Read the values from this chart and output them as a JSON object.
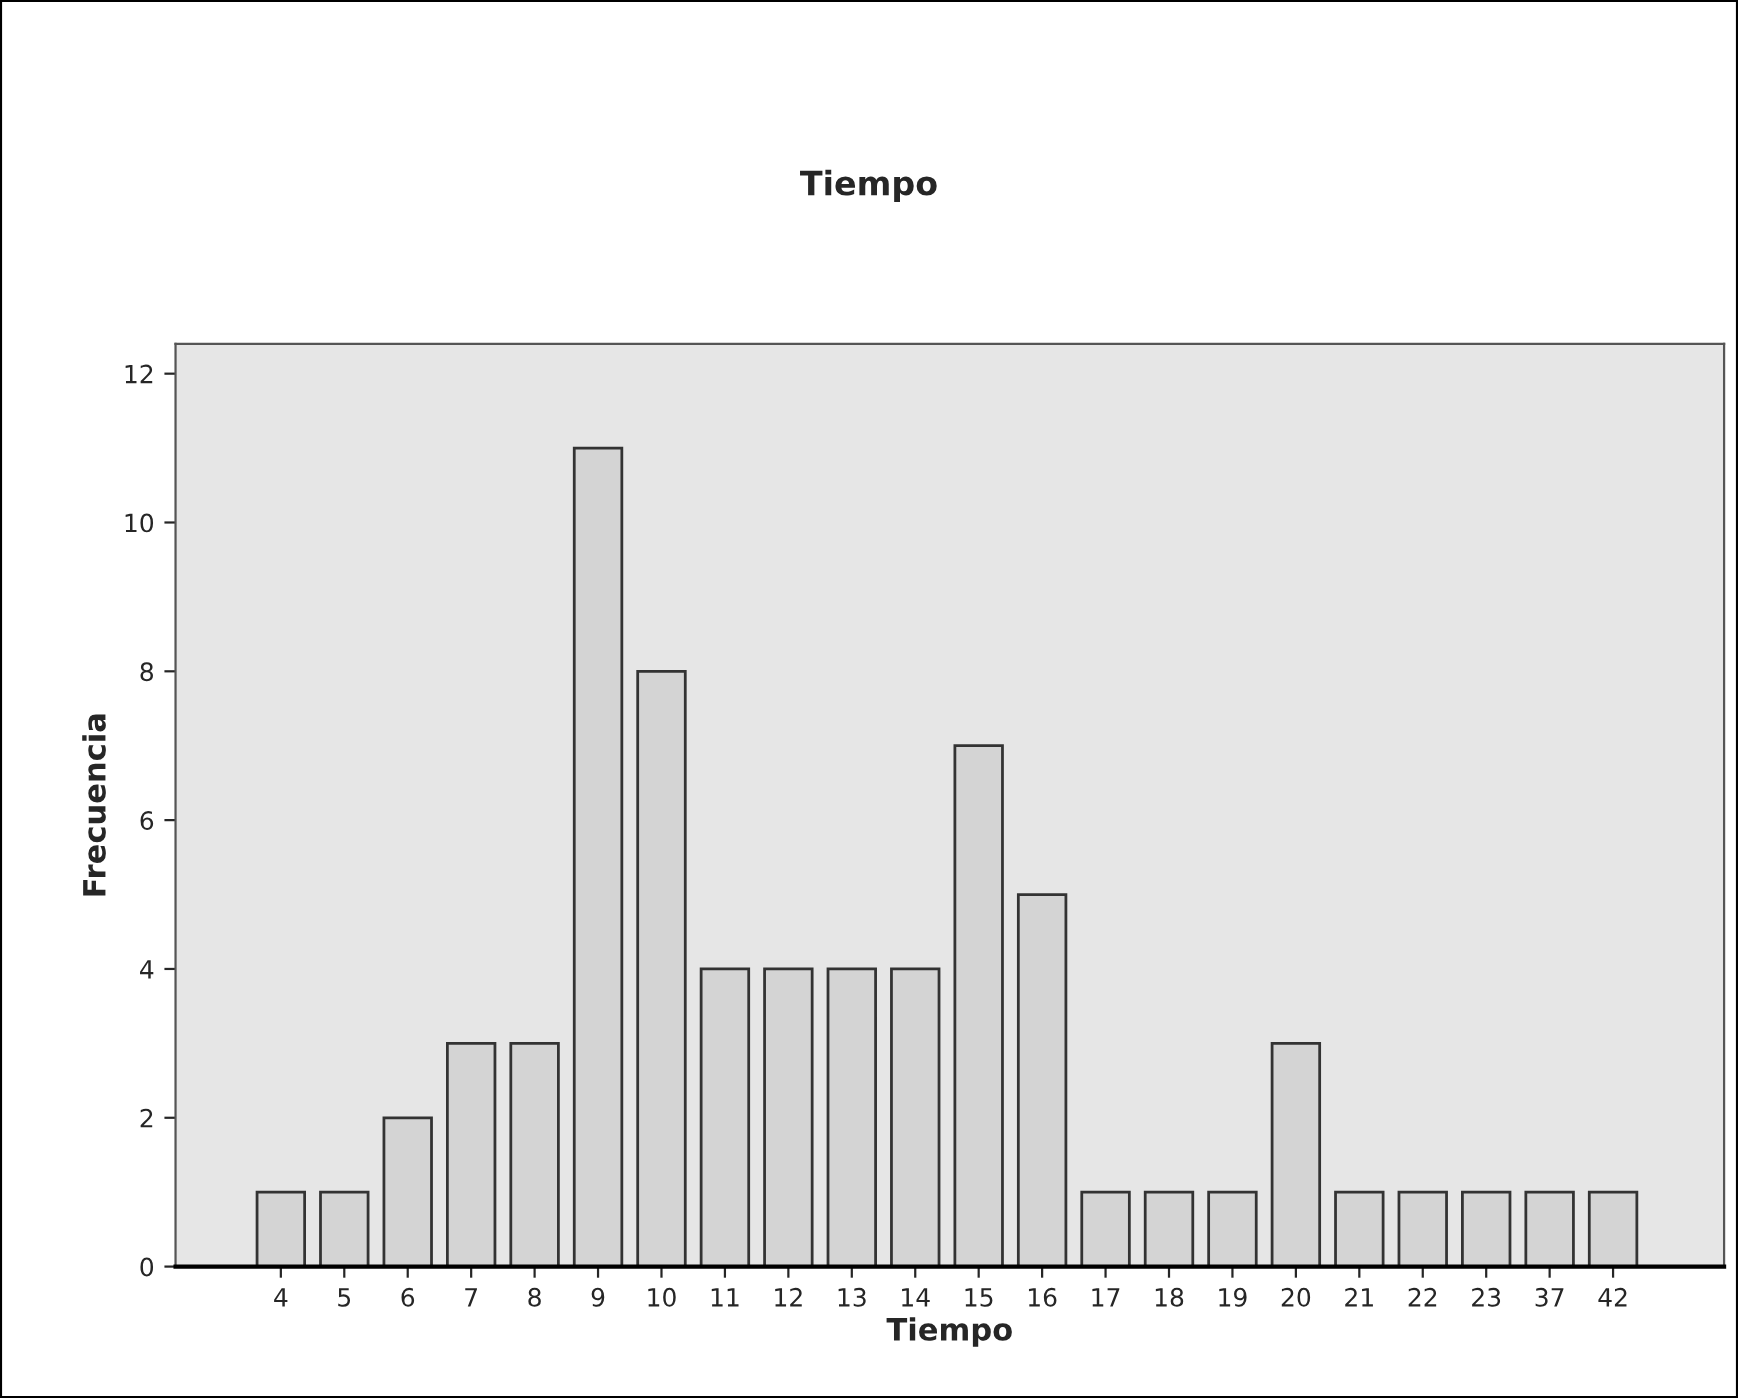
{
  "chart_data": {
    "type": "bar",
    "title": "Tiempo",
    "xlabel": "Tiempo",
    "ylabel": "Frecuencia",
    "categories": [
      "4",
      "5",
      "6",
      "7",
      "8",
      "9",
      "10",
      "11",
      "12",
      "13",
      "14",
      "15",
      "16",
      "17",
      "18",
      "19",
      "20",
      "21",
      "22",
      "23",
      "37",
      "42"
    ],
    "values": [
      1,
      1,
      2,
      3,
      3,
      11,
      8,
      4,
      4,
      4,
      4,
      7,
      5,
      1,
      1,
      1,
      3,
      1,
      1,
      1,
      1,
      1
    ],
    "color": "#d4d4d4",
    "ylim": [
      0,
      12.4
    ],
    "yticks": [
      0,
      2,
      4,
      6,
      8,
      10,
      12
    ],
    "grid": false
  }
}
